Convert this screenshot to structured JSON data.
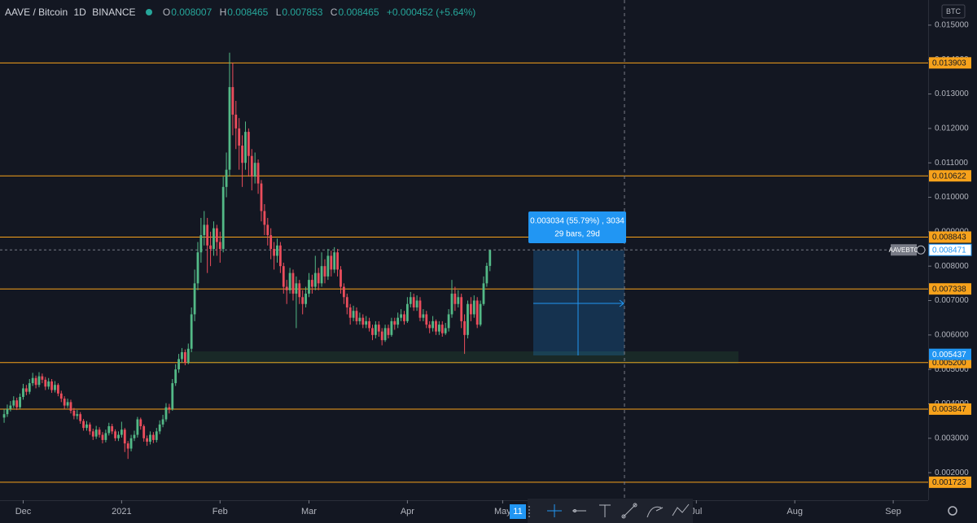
{
  "header": {
    "symbol": "AAVE / Bitcoin",
    "interval": "1D",
    "exchange": "BINANCE",
    "ohlc": [
      {
        "key": "O",
        "value": 0.008007
      },
      {
        "key": "H",
        "value": 0.008465
      },
      {
        "key": "L",
        "value": 0.007853
      },
      {
        "key": "C",
        "value": 0.008465
      }
    ],
    "change": "+0.000452 (+5.64%)",
    "currency": "BTC"
  },
  "chart_data": {
    "type": "candlestick",
    "up_color": "#53b987",
    "down_color": "#eb4d5c",
    "level_color": "#f7a21b",
    "open": [
      0.0036,
      0.0037,
      0.00385,
      0.00395,
      0.0041,
      0.0039,
      0.0042,
      0.00445,
      0.00435,
      0.0046,
      0.00475,
      0.00455,
      0.0048,
      0.0047,
      0.0045,
      0.00465,
      0.0044,
      0.00455,
      0.0043,
      0.00415,
      0.00395,
      0.00405,
      0.0038,
      0.00365,
      0.0037,
      0.0035,
      0.0033,
      0.0034,
      0.0032,
      0.00305,
      0.00325,
      0.0031,
      0.00295,
      0.00315,
      0.00335,
      0.0032,
      0.003,
      0.0031,
      0.00325,
      0.00285,
      0.0027,
      0.003,
      0.0031,
      0.00355,
      0.00335,
      0.003,
      0.0029,
      0.0031,
      0.00295,
      0.0032,
      0.0034,
      0.00355,
      0.0039,
      0.00385,
      0.0046,
      0.005,
      0.0053,
      0.0055,
      0.0052,
      0.0056,
      0.0066,
      0.0075,
      0.0084,
      0.0089,
      0.0092,
      0.0086,
      0.0085,
      0.0091,
      0.0087,
      0.0085,
      0.0103,
      0.0108,
      0.0132,
      0.0124,
      0.012,
      0.0115,
      0.011,
      0.0119,
      0.0112,
      0.0106,
      0.011,
      0.0104,
      0.0096,
      0.0092,
      0.0089,
      0.0085,
      0.0083,
      0.0086,
      0.008,
      0.0074,
      0.0073,
      0.0078,
      0.0072,
      0.0075,
      0.0071,
      0.0069,
      0.0072,
      0.0076,
      0.0074,
      0.0078,
      0.0075,
      0.008,
      0.0077,
      0.0083,
      0.0079,
      0.0084,
      0.0079,
      0.0074,
      0.0071,
      0.0068,
      0.0065,
      0.0067,
      0.0064,
      0.0065,
      0.0063,
      0.0064,
      0.0062,
      0.006,
      0.0063,
      0.0061,
      0.00585,
      0.0062,
      0.006,
      0.0064,
      0.0063,
      0.0065,
      0.0066,
      0.0064,
      0.0069,
      0.0071,
      0.0068,
      0.007,
      0.0065,
      0.0066,
      0.0063,
      0.0062,
      0.0064,
      0.0061,
      0.0063,
      0.00605,
      0.0062,
      0.0066,
      0.0072,
      0.0069,
      0.0071,
      0.0064,
      0.006,
      0.0069,
      0.0066,
      0.007,
      0.0063,
      0.0069,
      0.0075,
      0.008007
    ],
    "high": [
      0.00385,
      0.00398,
      0.00408,
      0.00422,
      0.00418,
      0.0043,
      0.00458,
      0.00455,
      0.00472,
      0.0049,
      0.00482,
      0.00492,
      0.00488,
      0.00478,
      0.00475,
      0.00472,
      0.00466,
      0.0046,
      0.00438,
      0.00422,
      0.00415,
      0.00412,
      0.00388,
      0.00382,
      0.00376,
      0.00356,
      0.0035,
      0.00346,
      0.00328,
      0.00336,
      0.00332,
      0.00318,
      0.00325,
      0.00345,
      0.00342,
      0.00326,
      0.0032,
      0.00348,
      0.0033,
      0.00292,
      0.0031,
      0.00322,
      0.00362,
      0.0036,
      0.0034,
      0.00308,
      0.0032,
      0.00318,
      0.0033,
      0.00352,
      0.00368,
      0.00402,
      0.004,
      0.00472,
      0.00515,
      0.00545,
      0.00562,
      0.00558,
      0.00575,
      0.0068,
      0.0079,
      0.0087,
      0.0094,
      0.0096,
      0.0094,
      0.009,
      0.0093,
      0.0092,
      0.009,
      0.0106,
      0.0113,
      0.0142,
      0.0139,
      0.0128,
      0.0123,
      0.0118,
      0.0122,
      0.012,
      0.0114,
      0.0113,
      0.0111,
      0.0105,
      0.0098,
      0.0094,
      0.0091,
      0.0087,
      0.0088,
      0.0087,
      0.0081,
      0.0076,
      0.00795,
      0.0079,
      0.0077,
      0.0076,
      0.0073,
      0.0074,
      0.0078,
      0.00775,
      0.0083,
      0.00795,
      0.0084,
      0.0082,
      0.0085,
      0.00845,
      0.00855,
      0.0085,
      0.008,
      0.0075,
      0.0072,
      0.0069,
      0.00685,
      0.0068,
      0.00665,
      0.0066,
      0.00655,
      0.0065,
      0.0063,
      0.0064,
      0.0064,
      0.0062,
      0.0063,
      0.0063,
      0.0065,
      0.0065,
      0.00665,
      0.00675,
      0.0067,
      0.0071,
      0.00725,
      0.0072,
      0.00715,
      0.0071,
      0.00675,
      0.0067,
      0.0064,
      0.00655,
      0.00645,
      0.0064,
      0.0064,
      0.00635,
      0.00675,
      0.0076,
      0.0074,
      0.0073,
      0.0072,
      0.0066,
      0.007,
      0.0071,
      0.00715,
      0.0071,
      0.007,
      0.0077,
      0.0081,
      0.008465
    ],
    "low": [
      0.00345,
      0.00362,
      0.00378,
      0.00388,
      0.00382,
      0.00385,
      0.00412,
      0.00425,
      0.00428,
      0.00452,
      0.00445,
      0.00448,
      0.0046,
      0.0044,
      0.00442,
      0.00432,
      0.00433,
      0.00422,
      0.00405,
      0.00385,
      0.00388,
      0.00372,
      0.00355,
      0.00355,
      0.00342,
      0.00322,
      0.00322,
      0.0031,
      0.00295,
      0.00298,
      0.00302,
      0.00285,
      0.00288,
      0.00308,
      0.00312,
      0.00292,
      0.00292,
      0.00302,
      0.0026,
      0.0024,
      0.00262,
      0.00292,
      0.00302,
      0.00325,
      0.0029,
      0.00278,
      0.00282,
      0.00286,
      0.00288,
      0.00312,
      0.00332,
      0.00348,
      0.00372,
      0.0038,
      0.00452,
      0.0049,
      0.0052,
      0.00512,
      0.00515,
      0.0055,
      0.0064,
      0.0073,
      0.0081,
      0.0086,
      0.0078,
      0.008,
      0.0083,
      0.0083,
      0.0081,
      0.0084,
      0.01,
      0.0106,
      0.0118,
      0.0114,
      0.0108,
      0.0103,
      0.0108,
      0.0106,
      0.0102,
      0.0104,
      0.0101,
      0.0093,
      0.0089,
      0.0086,
      0.0082,
      0.0079,
      0.0081,
      0.0078,
      0.0072,
      0.0069,
      0.0072,
      0.007,
      0.0062,
      0.0069,
      0.0066,
      0.0068,
      0.0071,
      0.0072,
      0.0073,
      0.0073,
      0.0074,
      0.0075,
      0.0076,
      0.0077,
      0.0078,
      0.0077,
      0.0072,
      0.0069,
      0.0066,
      0.0063,
      0.0064,
      0.0063,
      0.0063,
      0.0062,
      0.0062,
      0.0061,
      0.00585,
      0.0059,
      0.00595,
      0.0057,
      0.0058,
      0.0059,
      0.00595,
      0.00615,
      0.0062,
      0.0064,
      0.0063,
      0.00635,
      0.0068,
      0.0067,
      0.0067,
      0.0064,
      0.0064,
      0.0062,
      0.00605,
      0.0061,
      0.006,
      0.006,
      0.00595,
      0.006,
      0.0061,
      0.0065,
      0.0067,
      0.0068,
      0.0062,
      0.00545,
      0.0059,
      0.0064,
      0.0065,
      0.0062,
      0.00625,
      0.00685,
      0.0074,
      0.007853
    ],
    "close": [
      0.0037,
      0.00385,
      0.00395,
      0.0041,
      0.0039,
      0.0042,
      0.00445,
      0.00435,
      0.0046,
      0.00475,
      0.00455,
      0.0048,
      0.0047,
      0.0045,
      0.00465,
      0.0044,
      0.00455,
      0.0043,
      0.00415,
      0.00395,
      0.00405,
      0.0038,
      0.00365,
      0.0037,
      0.0035,
      0.0033,
      0.0034,
      0.0032,
      0.00305,
      0.00325,
      0.0031,
      0.00295,
      0.00315,
      0.00335,
      0.0032,
      0.003,
      0.0031,
      0.00325,
      0.00285,
      0.0027,
      0.003,
      0.0031,
      0.00355,
      0.00335,
      0.003,
      0.0029,
      0.0031,
      0.00295,
      0.0032,
      0.0034,
      0.00355,
      0.0039,
      0.00385,
      0.0046,
      0.005,
      0.0053,
      0.0055,
      0.0052,
      0.0056,
      0.0066,
      0.0075,
      0.0084,
      0.0089,
      0.0092,
      0.0086,
      0.0085,
      0.0091,
      0.0087,
      0.0085,
      0.0103,
      0.0108,
      0.0132,
      0.0124,
      0.012,
      0.0115,
      0.011,
      0.0119,
      0.0112,
      0.0106,
      0.011,
      0.0104,
      0.0096,
      0.0092,
      0.0089,
      0.0085,
      0.0083,
      0.0086,
      0.008,
      0.0074,
      0.0073,
      0.0078,
      0.0072,
      0.0075,
      0.0071,
      0.0069,
      0.0072,
      0.0076,
      0.0074,
      0.0078,
      0.0075,
      0.008,
      0.0077,
      0.0083,
      0.0079,
      0.0084,
      0.0079,
      0.0074,
      0.0071,
      0.0068,
      0.0065,
      0.0067,
      0.0064,
      0.0065,
      0.0063,
      0.0064,
      0.0062,
      0.006,
      0.0063,
      0.0061,
      0.00585,
      0.0062,
      0.006,
      0.0064,
      0.0063,
      0.0065,
      0.0066,
      0.0064,
      0.0069,
      0.0071,
      0.0068,
      0.007,
      0.0065,
      0.0066,
      0.0063,
      0.0062,
      0.0064,
      0.0061,
      0.0063,
      0.00605,
      0.0062,
      0.0066,
      0.0072,
      0.0069,
      0.0071,
      0.0064,
      0.006,
      0.0069,
      0.0066,
      0.007,
      0.0063,
      0.0069,
      0.0075,
      0.008007,
      0.008465
    ],
    "xlim": [
      -1.3,
      291
    ],
    "xticks": [
      {
        "value": 6,
        "label": "Dec"
      },
      {
        "value": 37,
        "label": "2021"
      },
      {
        "value": 68,
        "label": "Feb"
      },
      {
        "value": 96,
        "label": "Mar"
      },
      {
        "value": 127,
        "label": "Apr"
      },
      {
        "value": 157,
        "label": "May"
      },
      {
        "value": 218,
        "label": "Jul"
      },
      {
        "value": 249,
        "label": "Aug"
      },
      {
        "value": 280,
        "label": "Sep"
      }
    ],
    "ylim": [
      0.0012,
      0.01573
    ],
    "yticks": [
      {
        "value": 0.015,
        "label": "0.015000"
      },
      {
        "value": 0.014,
        "label": "0.014000"
      },
      {
        "value": 0.013,
        "label": "0.013000"
      },
      {
        "value": 0.012,
        "label": "0.012000"
      },
      {
        "value": 0.011,
        "label": "0.011000"
      },
      {
        "value": 0.01,
        "label": "0.010000"
      },
      {
        "value": 0.009,
        "label": "0.009000"
      },
      {
        "value": 0.008,
        "label": "0.008000"
      },
      {
        "value": 0.007,
        "label": "0.007000"
      },
      {
        "value": 0.006,
        "label": "0.006000"
      },
      {
        "value": 0.005,
        "label": "0.005000"
      },
      {
        "value": 0.004,
        "label": "0.004000"
      },
      {
        "value": 0.003,
        "label": "0.003000"
      },
      {
        "value": 0.002,
        "label": "0.002000"
      }
    ],
    "levels": [
      0.013903,
      0.010622,
      0.008843,
      0.007338,
      {
        "value": 0.0052,
        "label": "0.005200"
      },
      0.003847,
      0.001723
    ],
    "measure_price": 0.005437,
    "last_price": 0.008471,
    "symbol_tag": "AAVEBTC",
    "crosshair_label": "11",
    "measure": {
      "line1": "0.003034 (55.79%) , 3034",
      "line2": "29 bars, 29d"
    }
  }
}
